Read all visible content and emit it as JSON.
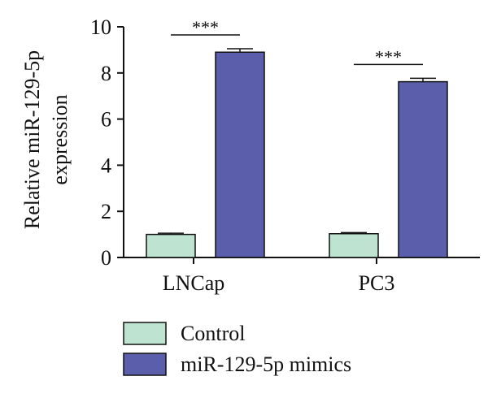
{
  "chart_data": {
    "type": "bar",
    "title": "",
    "xlabel": "",
    "ylabel": "Relative miR-129-5p expression",
    "ylabel_lines": [
      "Relative miR-129-5p",
      "expression"
    ],
    "ylim": [
      0,
      10
    ],
    "yticks": [
      0,
      2,
      4,
      6,
      8,
      10
    ],
    "categories": [
      "LNCap",
      "PC3"
    ],
    "series": [
      {
        "name": "Control",
        "values": [
          1.0,
          1.03
        ],
        "errors": [
          0.05,
          0.05
        ],
        "color": "#bfe3d1"
      },
      {
        "name": "miR-129-5p mimics",
        "values": [
          8.9,
          7.62
        ],
        "errors": [
          0.15,
          0.15
        ],
        "color": "#5b5fab"
      }
    ],
    "annotations": [
      {
        "text": "***",
        "category": "LNCap"
      },
      {
        "text": "***",
        "category": "PC3"
      }
    ],
    "legend_position": "bottom-left",
    "grid": false
  }
}
